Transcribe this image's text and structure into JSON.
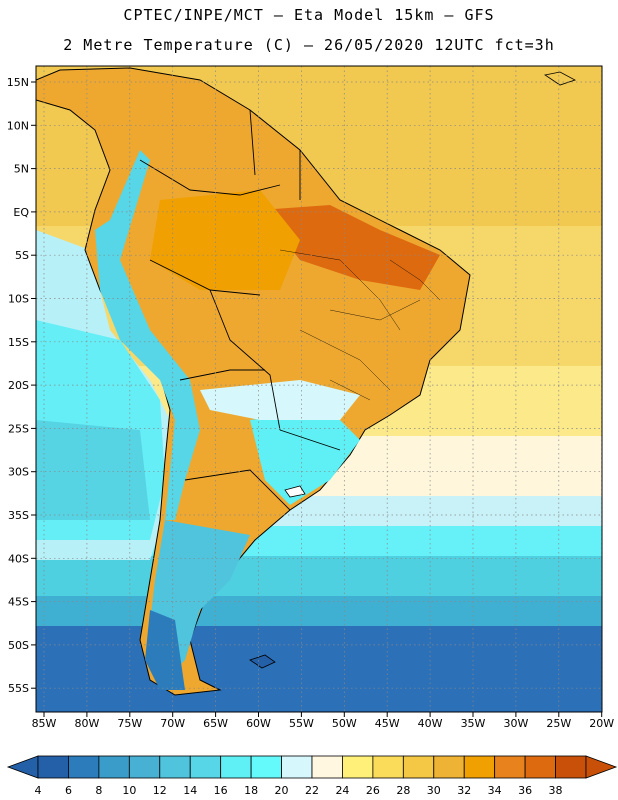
{
  "header": {
    "line1": "CPTEC/INPE/MCT –  Eta Model 15km – GFS",
    "line2": "2 Metre Temperature (C) – 26/05/2020 12UTC fct=3h"
  },
  "map": {
    "variable": "2 Metre Temperature",
    "units": "C",
    "lon_ticks": [
      "85W",
      "80W",
      "75W",
      "70W",
      "65W",
      "60W",
      "55W",
      "50W",
      "45W",
      "40W",
      "35W",
      "30W",
      "25W",
      "20W"
    ],
    "lat_ticks": [
      "15N",
      "10N",
      "5N",
      "EQ",
      "5S",
      "10S",
      "15S",
      "20S",
      "25S",
      "30S",
      "35S",
      "40S",
      "45S",
      "50S",
      "55S"
    ]
  },
  "colorbar": {
    "labels": [
      "4",
      "6",
      "8",
      "10",
      "12",
      "14",
      "16",
      "18",
      "20",
      "22",
      "24",
      "26",
      "28",
      "30",
      "32",
      "34",
      "36",
      "38"
    ],
    "colors": [
      "#2460a8",
      "#2c7cbc",
      "#3a9cc8",
      "#48b0d2",
      "#4fc4dc",
      "#56d6e6",
      "#5ef0f4",
      "#64fafc",
      "#d6f8fc",
      "#fff7e0",
      "#fff07a",
      "#fbdc5a",
      "#f4c844",
      "#eeb234",
      "#f0a000",
      "#e8821c",
      "#de6a10",
      "#c85008"
    ]
  }
}
